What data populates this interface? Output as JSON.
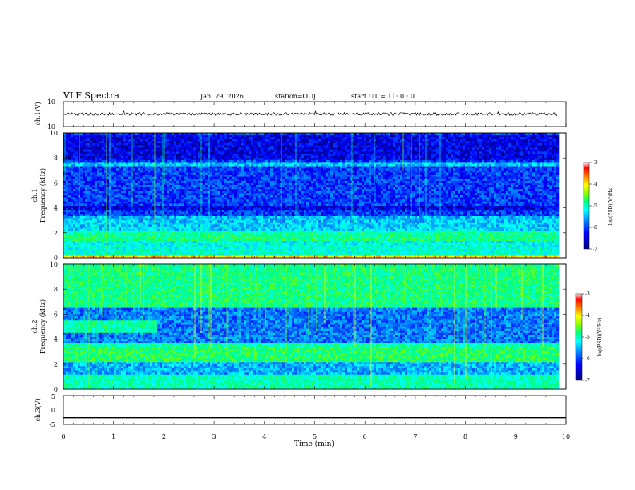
{
  "header": {
    "title": "VLF Spectra",
    "date": "Jan. 29, 2026",
    "station": "station=OUJ",
    "start": "start  UT =   11: 0   : 0"
  },
  "colors": {
    "trace": "#000000",
    "scale_stops": [
      "#00007f",
      "#0000ff",
      "#0080ff",
      "#00ffff",
      "#00ff80",
      "#80ff00",
      "#ffff00",
      "#ff8000",
      "#ff0000",
      "#ffffff"
    ]
  },
  "chart_data": [
    {
      "type": "line",
      "id": "ch1-waveform",
      "ylabel": "ch.1(V)",
      "ylim": [
        -10,
        10
      ],
      "yticks": [
        "10",
        "-10"
      ],
      "baseline": 0,
      "noise_amplitude": 1.2
    },
    {
      "type": "heatmap",
      "id": "ch1-spectrogram",
      "ylabel_channel": "ch.1",
      "ylabel": "Frequency (kHz)",
      "ylim": [
        0,
        10
      ],
      "yticks": [
        "0",
        "2",
        "4",
        "6",
        "8",
        "10"
      ],
      "colorbar": {
        "label": "log(PSD)(V²/Hz)",
        "range": [
          -7,
          -3
        ],
        "ticks": [
          "-3",
          "-4",
          "-5",
          "-6",
          "-7"
        ]
      }
    },
    {
      "type": "heatmap",
      "id": "ch2-spectrogram",
      "ylabel_channel": "ch.2",
      "ylabel": "Frequency (kHz)",
      "ylim": [
        0,
        10
      ],
      "yticks": [
        "0",
        "2",
        "4",
        "6",
        "8",
        "10"
      ],
      "colorbar": {
        "label": "log(PSD)(V²/Hz)",
        "range": [
          -7,
          -3
        ],
        "ticks": [
          "-3",
          "-4",
          "-5",
          "-6",
          "-7"
        ]
      }
    },
    {
      "type": "line",
      "id": "ch3-waveform",
      "ylabel": "ch.3(V)",
      "ylim": [
        -5,
        5
      ],
      "yticks": [
        "5",
        "0",
        "-5"
      ],
      "baseline": -2.7,
      "noise_amplitude": 0
    }
  ],
  "xaxis": {
    "label": "Time (min)",
    "range": [
      0,
      10
    ],
    "data_end": 9.83,
    "ticks": [
      "0",
      "1",
      "2",
      "3",
      "4",
      "5",
      "6",
      "7",
      "8",
      "9",
      "10"
    ]
  }
}
